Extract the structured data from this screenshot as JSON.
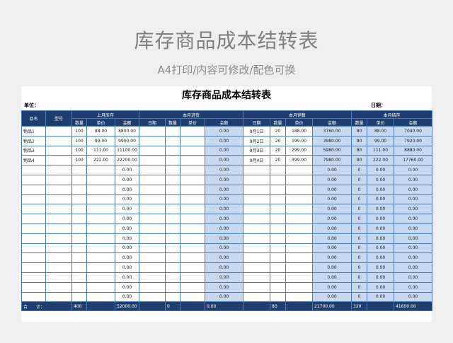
{
  "header": {
    "title": "库存商品成本结转表",
    "subtitle": "A4打印/内容可修改/配色可换"
  },
  "sheet": {
    "title": "库存商品成本结转表",
    "unit_label": "单位：",
    "date_label": "日期：",
    "header_row1": [
      "品名",
      "型号",
      "上月库存",
      "本月进货",
      "本月销售",
      "本月结存"
    ],
    "header_row2": [
      "数量",
      "单价",
      "金额",
      "日期",
      "数量",
      "单价",
      "金额",
      "日期",
      "数量",
      "单价",
      "金额",
      "数量",
      "单价",
      "金额"
    ],
    "rows": [
      [
        "物品1",
        null,
        "100",
        "88.00",
        "8800.00",
        null,
        null,
        null,
        "0.00",
        "9月1日",
        "20",
        "188.00",
        "3760.00",
        "80",
        "88.00",
        "7040.00"
      ],
      [
        "物品2",
        null,
        "100",
        "99.00",
        "9900.00",
        null,
        null,
        null,
        "0.00",
        "9月2日",
        "20",
        "199.00",
        "3980.00",
        "80",
        "99.00",
        "7920.00"
      ],
      [
        "物品3",
        null,
        "100",
        "111.00",
        "11100.00",
        null,
        null,
        null,
        "0.00",
        "9月3日",
        "20",
        "299.00",
        "5980.00",
        "80",
        "111.00",
        "8880.00"
      ],
      [
        "物品4",
        null,
        "100",
        "222.00",
        "22200.00",
        null,
        null,
        null,
        "0.00",
        "9月4日",
        "20",
        "399.00",
        "7980.00",
        "80",
        "222.00",
        "17760.00"
      ],
      [
        null,
        null,
        null,
        null,
        "0.00",
        null,
        null,
        null,
        "0.00",
        null,
        null,
        null,
        "0.00",
        "0",
        "0.00",
        "0.00"
      ],
      [
        null,
        null,
        null,
        null,
        "0.00",
        null,
        null,
        null,
        "0.00",
        null,
        null,
        null,
        "0.00",
        "0",
        "0.00",
        "0.00"
      ],
      [
        null,
        null,
        null,
        null,
        "0.00",
        null,
        null,
        null,
        "0.00",
        null,
        null,
        null,
        "0.00",
        "0",
        "0.00",
        "0.00"
      ],
      [
        null,
        null,
        null,
        null,
        "0.00",
        null,
        null,
        null,
        "0.00",
        null,
        null,
        null,
        "0.00",
        "0",
        "0.00",
        "0.00"
      ],
      [
        null,
        null,
        null,
        null,
        "0.00",
        null,
        null,
        null,
        "0.00",
        null,
        null,
        null,
        "0.00",
        "0",
        "0.00",
        "0.00"
      ],
      [
        null,
        null,
        null,
        null,
        "0.00",
        null,
        null,
        null,
        "0.00",
        null,
        null,
        null,
        "0.00",
        "0",
        "0.00",
        "0.00"
      ],
      [
        null,
        null,
        null,
        null,
        "0.00",
        null,
        null,
        null,
        "0.00",
        null,
        null,
        null,
        "0.00",
        "0",
        "0.00",
        "0.00"
      ],
      [
        null,
        null,
        null,
        null,
        "0.00",
        null,
        null,
        null,
        "0.00",
        null,
        null,
        null,
        "0.00",
        "0",
        "0.00",
        "0.00"
      ],
      [
        null,
        null,
        null,
        null,
        "0.00",
        null,
        null,
        null,
        "0.00",
        null,
        null,
        null,
        "0.00",
        "0",
        "0.00",
        "0.00"
      ],
      [
        null,
        null,
        null,
        null,
        "0.00",
        null,
        null,
        null,
        "0.00",
        null,
        null,
        null,
        "0.00",
        "0",
        "0.00",
        "0.00"
      ],
      [
        null,
        null,
        null,
        null,
        "0.00",
        null,
        null,
        null,
        "0.00",
        null,
        null,
        null,
        "0.00",
        "0",
        "0.00",
        "0.00"
      ],
      [
        null,
        null,
        null,
        null,
        "0.00",
        null,
        null,
        null,
        "0.00",
        null,
        null,
        null,
        "0.00",
        "0",
        "0.00",
        "0.00"
      ],
      [
        null,
        null,
        null,
        null,
        "0.00",
        null,
        null,
        null,
        "0.00",
        null,
        null,
        null,
        "0.00",
        "0",
        "0.00",
        "0.00"
      ],
      [
        null,
        null,
        null,
        null,
        "0.00",
        null,
        null,
        null,
        "0.00",
        null,
        null,
        null,
        "0.00",
        "0",
        "0.00",
        "0.00"
      ]
    ],
    "total": [
      "合　　计：",
      "400",
      null,
      "52000.00",
      null,
      "0",
      null,
      "0.00",
      null,
      "80",
      null,
      "21700.00",
      "320",
      null,
      "41600.00"
    ]
  }
}
